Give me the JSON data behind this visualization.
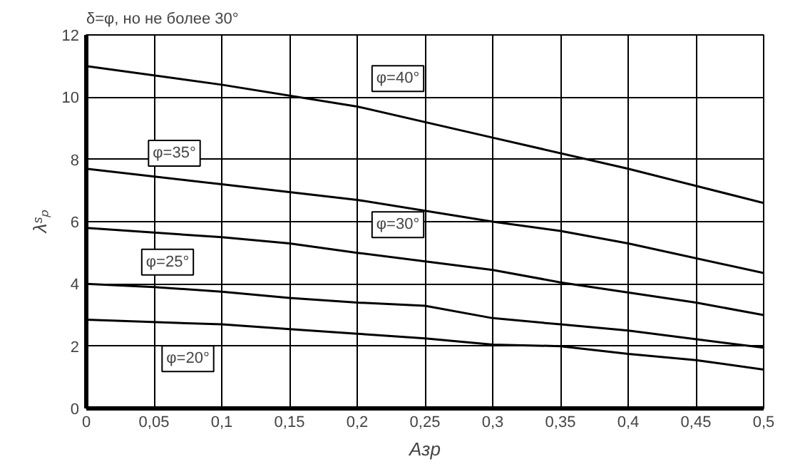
{
  "chart_data": {
    "type": "line",
    "title": "δ=φ, но не более 30°",
    "xlabel": "Aзр",
    "ylabel": "λˢₚ",
    "series": [
      {
        "color": "#000000",
        "x": [
          0,
          0.1,
          0.2,
          0.3,
          0.4,
          0.5
        ],
        "values": [
          11.0,
          10.4,
          9.7,
          8.7,
          7.7,
          6.6
        ]
      },
      {
        "color": "#000000",
        "x": [
          0,
          0.1,
          0.2,
          0.3,
          0.35,
          0.4,
          0.5
        ],
        "values": [
          7.7,
          7.2,
          6.7,
          6.0,
          5.7,
          5.3,
          4.35
        ]
      },
      {
        "color": "#000000",
        "x": [
          0,
          0.1,
          0.15,
          0.2,
          0.3,
          0.35,
          0.45,
          0.5
        ],
        "values": [
          5.8,
          5.5,
          5.3,
          5.0,
          4.45,
          4.05,
          3.4,
          3.0
        ]
      },
      {
        "color": "#000000",
        "x": [
          0,
          0.05,
          0.1,
          0.15,
          0.2,
          0.25,
          0.3,
          0.35,
          0.4,
          0.5
        ],
        "values": [
          4.0,
          3.9,
          3.75,
          3.55,
          3.4,
          3.3,
          2.9,
          2.7,
          2.5,
          1.95
        ]
      },
      {
        "color": "#000000",
        "x": [
          0,
          0.1,
          0.15,
          0.2,
          0.25,
          0.3,
          0.35,
          0.4,
          0.45,
          0.5
        ],
        "values": [
          2.85,
          2.7,
          2.55,
          2.4,
          2.25,
          2.05,
          2.0,
          1.75,
          1.55,
          1.25
        ]
      }
    ],
    "xlim": [
      0,
      0.5
    ],
    "ylim": [
      0,
      12
    ],
    "xticks": [
      0,
      {
        "value": 0.05,
        "label": "0,05"
      },
      {
        "value": 0.1,
        "label": "0,1"
      },
      {
        "value": 0.15,
        "label": "0,15"
      },
      {
        "value": 0.2,
        "label": "0,2"
      },
      {
        "value": 0.25,
        "label": "0,25"
      },
      {
        "value": 0.3,
        "label": "0,3"
      },
      {
        "value": 0.35,
        "label": "0,35"
      },
      {
        "value": 0.4,
        "label": "0,4"
      },
      {
        "value": 0.45,
        "label": "0,45"
      },
      {
        "value": 0.5,
        "label": "0,5"
      }
    ],
    "yticks": [
      0,
      2,
      4,
      6,
      8,
      10,
      12
    ],
    "grid": true,
    "marker": "none",
    "line_style": "solid",
    "annotations": [
      {
        "text": "φ=40°",
        "x": 0.23,
        "y": 10.6
      },
      {
        "text": "φ=35°",
        "x": 0.065,
        "y": 8.2
      },
      {
        "text": "φ=30°",
        "x": 0.23,
        "y": 5.9
      },
      {
        "text": "φ=25°",
        "x": 0.06,
        "y": 4.7
      },
      {
        "text": "φ=20°",
        "x": 0.075,
        "y": 1.6
      }
    ]
  }
}
